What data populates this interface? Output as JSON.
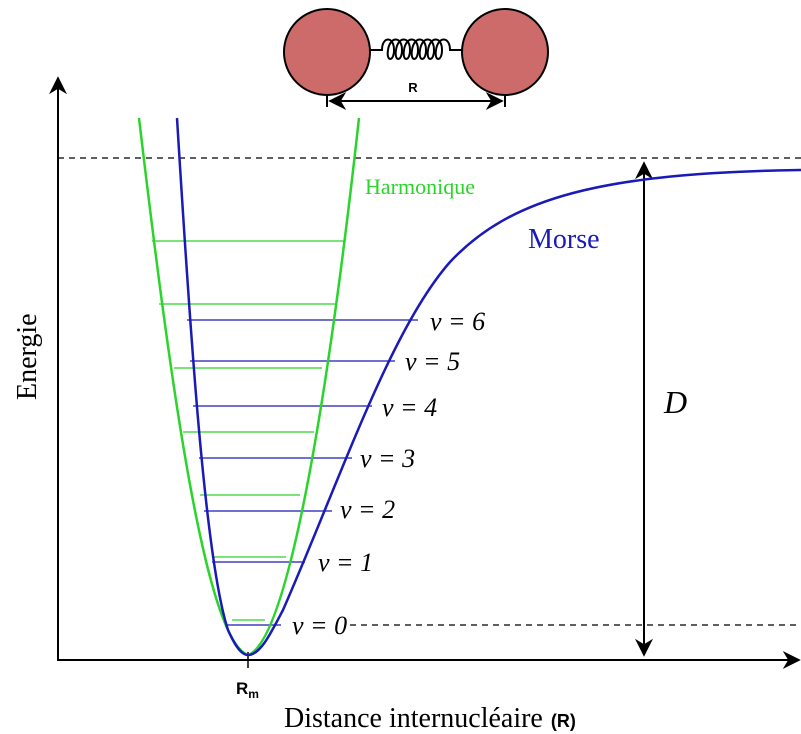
{
  "molecule": {
    "bond_label": "R",
    "atom_color": "#cd6b6b"
  },
  "axes": {
    "x_label": "Distance internucléaire",
    "x_label_suffix": "(R)",
    "y_label": "Energie",
    "rm_label": "R",
    "rm_subscript": "m"
  },
  "curves": {
    "harmonic": {
      "label": "Harmonique",
      "color": "#2bd42b"
    },
    "morse": {
      "label": "Morse",
      "color": "#1a1ab8"
    }
  },
  "dissociation": {
    "label": "D"
  },
  "levels": [
    {
      "v": "0",
      "text": "v = 0"
    },
    {
      "v": "1",
      "text": "v = 1"
    },
    {
      "v": "2",
      "text": "v = 2"
    },
    {
      "v": "3",
      "text": "v = 3"
    },
    {
      "v": "4",
      "text": "v = 4"
    },
    {
      "v": "5",
      "text": "v = 5"
    },
    {
      "v": "6",
      "text": "v = 6"
    }
  ]
}
